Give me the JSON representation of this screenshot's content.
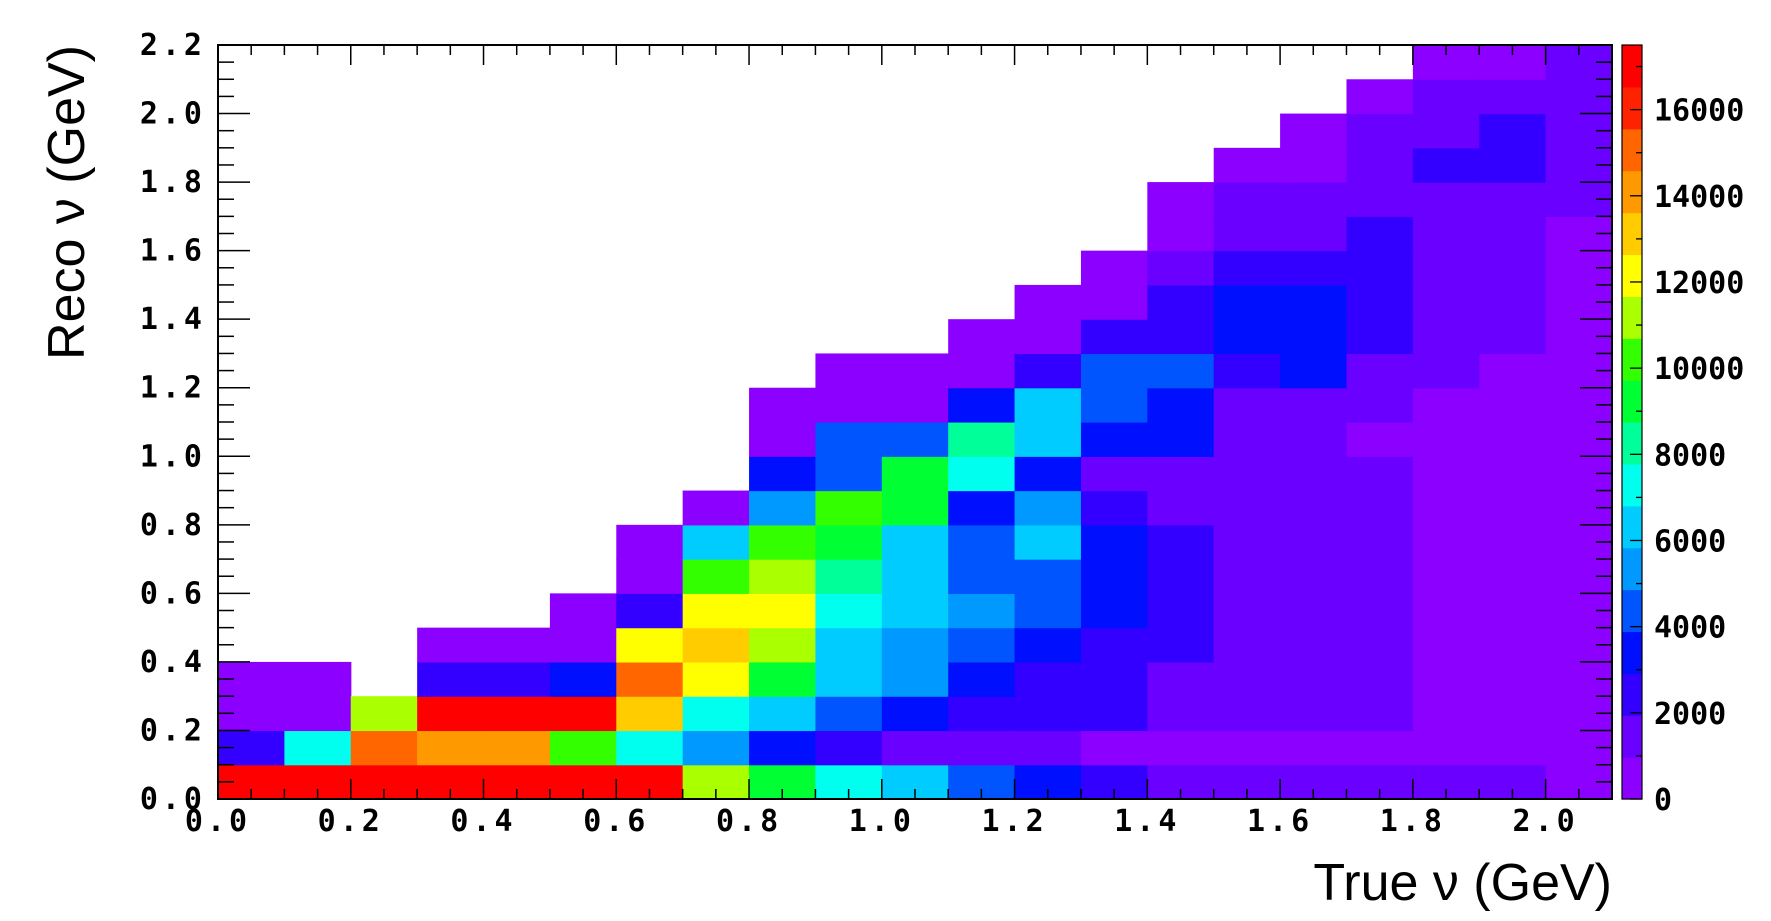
{
  "chart_data": {
    "type": "heatmap",
    "title": "",
    "xlabel": "True ν (GeV)",
    "ylabel": "Reco ν (GeV)",
    "xlim": [
      0,
      2.1
    ],
    "ylim": [
      0,
      2.2
    ],
    "bin_width_x": 0.1,
    "bin_width_y": 0.1,
    "x_ticks": [
      "0.0",
      "0.2",
      "0.4",
      "0.6",
      "0.8",
      "1.0",
      "1.2",
      "1.4",
      "1.6",
      "1.8",
      "2.0"
    ],
    "y_ticks": [
      "0.0",
      "0.2",
      "0.4",
      "0.6",
      "0.8",
      "1.0",
      "1.2",
      "1.4",
      "1.6",
      "1.8",
      "2.0",
      "2.2"
    ],
    "colorbar": {
      "min": 0,
      "max": 17500,
      "ticks": [
        "0",
        "2000",
        "4000",
        "6000",
        "8000",
        "10000",
        "12000",
        "14000",
        "16000"
      ],
      "palette": [
        "#8b00ff",
        "#6a00ff",
        "#3300ff",
        "#0010ff",
        "#0055ff",
        "#0099ff",
        "#00ccff",
        "#00ffee",
        "#00ff99",
        "#00ff33",
        "#33ff00",
        "#aaff00",
        "#ffff00",
        "#ffcc00",
        "#ff9900",
        "#ff6600",
        "#ff2200",
        "#ff0000"
      ]
    },
    "z": [
      [
        17500,
        2500,
        800,
        800
      ],
      [
        17500,
        7500,
        800,
        800
      ],
      [
        17500,
        14800,
        11500
      ],
      [
        17500,
        14000,
        17500,
        2800,
        800
      ],
      [
        17500,
        13800,
        17500,
        2800,
        800
      ],
      [
        17500,
        10500,
        17500,
        3000,
        800,
        800
      ],
      [
        17500,
        7200,
        13000,
        15500,
        12000,
        2000,
        700,
        800
      ],
      [
        11500,
        5000,
        7500,
        12000,
        13300,
        12000,
        10000,
        6500,
        800
      ],
      [
        9000,
        3000,
        6000,
        9000,
        11500,
        12500,
        11000,
        10000,
        5000,
        3000,
        700,
        800
      ],
      [
        7500,
        2500,
        4500,
        6000,
        6500,
        7500,
        8000,
        9500,
        10000,
        4000,
        4000,
        800,
        800
      ],
      [
        6000,
        1800,
        3600,
        5000,
        5500,
        6500,
        6500,
        6500,
        9000,
        9500,
        4000,
        800,
        800
      ],
      [
        4000,
        1300,
        2600,
        3400,
        4200,
        4900,
        4500,
        4000,
        3000,
        7000,
        8500,
        3500,
        600,
        800
      ],
      [
        3000,
        1100,
        2300,
        2800,
        3500,
        4200,
        4100,
        6000,
        5000,
        3000,
        6500,
        6500,
        2500,
        500,
        800
      ],
      [
        2300,
        900,
        2100,
        2300,
        2800,
        3000,
        3200,
        3000,
        2200,
        1300,
        3500,
        4500,
        4000,
        2000,
        900,
        800
      ],
      [
        1800,
        800,
        1600,
        1700,
        2000,
        2100,
        2000,
        2500,
        1800,
        1800,
        3200,
        3200,
        4500,
        2500,
        2500,
        1200,
        900,
        800
      ],
      [
        1500,
        700,
        1300,
        1300,
        1300,
        1300,
        1300,
        1300,
        1300,
        1300,
        1500,
        1900,
        2000,
        3500,
        3500,
        2200,
        1400,
        1100,
        800
      ],
      [
        1400,
        700,
        1200,
        1200,
        1200,
        1200,
        1200,
        1200,
        1200,
        1200,
        1100,
        1500,
        3200,
        3000,
        3000,
        2000,
        1600,
        1100,
        900,
        800
      ],
      [
        1300,
        600,
        1000,
        1000,
        1000,
        1000,
        1000,
        1000,
        1000,
        1000,
        900,
        1000,
        1400,
        2000,
        2200,
        2200,
        2500,
        1800,
        1400,
        1100,
        800
      ],
      [
        1200,
        600,
        900,
        900,
        900,
        900,
        900,
        900,
        900,
        900,
        900,
        900,
        1100,
        1200,
        1200,
        1400,
        1400,
        1800,
        2400,
        1800,
        1400,
        800
      ],
      [
        1100,
        550,
        800,
        800,
        800,
        800,
        800,
        800,
        800,
        800,
        800,
        800,
        900,
        1000,
        1000,
        1100,
        1100,
        1500,
        2000,
        2000,
        1500,
        900
      ],
      [
        900,
        500,
        700,
        700,
        700,
        700,
        700,
        700,
        700,
        700,
        700,
        700,
        700,
        800,
        800,
        800,
        800,
        1200,
        1200,
        1200,
        1200,
        1000
      ]
    ]
  }
}
